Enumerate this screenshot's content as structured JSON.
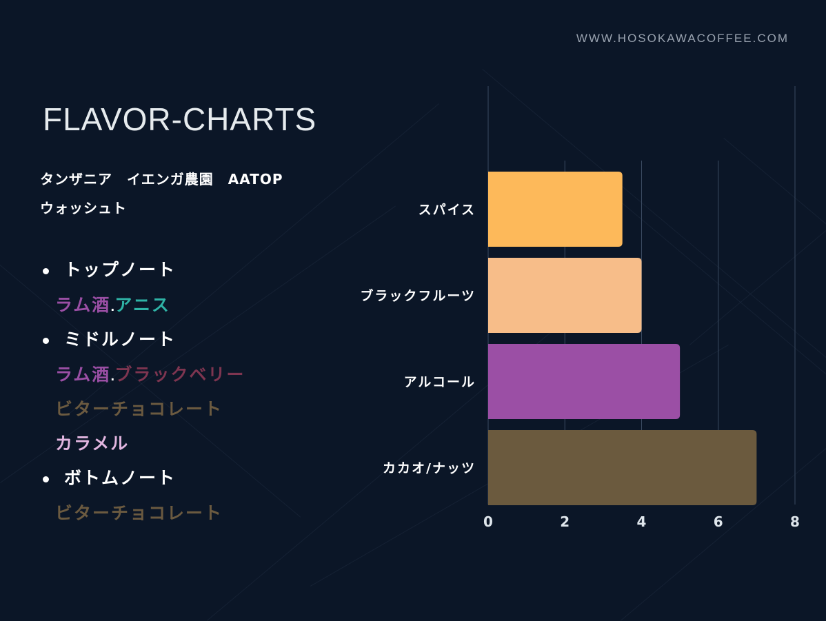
{
  "header": {
    "site": "WWW.HOSOKAWACOFFEE.COM",
    "title": "FLAVOR-CHARTS"
  },
  "coffee": {
    "line1": "タンザニア　イエンガ農園　AATOP",
    "line2": "ウォッシュト"
  },
  "notes": {
    "top": {
      "label": "トップノート",
      "items": [
        {
          "text": "ラム酒",
          "color": "#9b4fa5"
        },
        {
          "text": ".",
          "color": "#ffffff"
        },
        {
          "text": "アニス",
          "color": "#2fb3a6"
        }
      ]
    },
    "middle": {
      "label": "ミドルノート",
      "line1": [
        {
          "text": "ラム酒",
          "color": "#9b4fa5"
        },
        {
          "text": ".",
          "color": "#ffffff"
        },
        {
          "text": "ブラックベリー",
          "color": "#7e3550"
        }
      ],
      "line2": {
        "text": "ビターチョコレート",
        "color": "#6b5a40"
      },
      "line3": {
        "text": "カラメル",
        "color": "#e2b6e0"
      }
    },
    "bottom": {
      "label": "ボトムノート",
      "line1": {
        "text": "ビターチョコレート",
        "color": "#6b5a40"
      }
    }
  },
  "chart_data": {
    "type": "bar",
    "orientation": "horizontal",
    "categories": [
      "スパイス",
      "ブラックフルーツ",
      "アルコール",
      "カカオ/ナッツ"
    ],
    "values": [
      3.5,
      4,
      5,
      7
    ],
    "colors": [
      "#fdb95a",
      "#f7bd89",
      "#9b4fa5",
      "#6b5a3e"
    ],
    "xlim": [
      0,
      8
    ],
    "xticks": [
      "0",
      "2",
      "4",
      "6",
      "8"
    ],
    "grid": true,
    "title": "",
    "xlabel": "",
    "ylabel": ""
  }
}
